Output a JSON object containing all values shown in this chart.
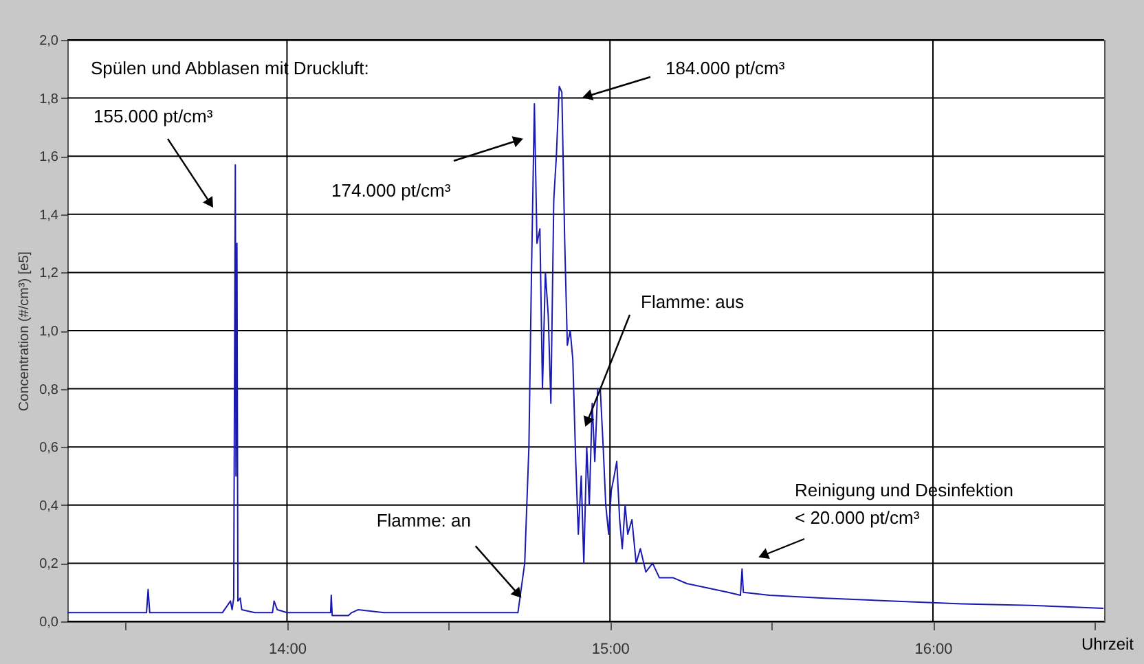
{
  "chart_data": {
    "type": "line",
    "ylabel": "Concentration (#/cm³) [e5]",
    "xlabel": "Uhrzeit",
    "xlim": [
      13.32,
      16.53
    ],
    "ylim": [
      0,
      2.0
    ],
    "xticks": [
      {
        "value": 13.5,
        "label": null
      },
      {
        "value": 14,
        "label": "14:00"
      },
      {
        "value": 14.5,
        "label": null
      },
      {
        "value": 15,
        "label": "15:00"
      },
      {
        "value": 15.5,
        "label": null
      },
      {
        "value": 16,
        "label": "16:00"
      },
      {
        "value": 16.5,
        "label": null
      }
    ],
    "yticks": [
      {
        "value": 0,
        "label": "0,0"
      },
      {
        "value": 0.2,
        "label": "0,2"
      },
      {
        "value": 0.4,
        "label": "0,4"
      },
      {
        "value": 0.6,
        "label": "0,6"
      },
      {
        "value": 0.8,
        "label": "0,8"
      },
      {
        "value": 1.0,
        "label": "1,0"
      },
      {
        "value": 1.2,
        "label": "1,2"
      },
      {
        "value": 1.4,
        "label": "1,4"
      },
      {
        "value": 1.6,
        "label": "1,6"
      },
      {
        "value": 1.8,
        "label": "1,8"
      },
      {
        "value": 2.0,
        "label": "2,0"
      }
    ],
    "grid": true,
    "marker": "none",
    "line_style": "solid",
    "series": [
      {
        "color": "#1a1ab0",
        "x": [
          13.32,
          13.5,
          13.565,
          13.57,
          13.575,
          13.8,
          13.825,
          13.83,
          13.835,
          13.84,
          13.842,
          13.845,
          13.848,
          13.855,
          13.86,
          13.9,
          13.955,
          13.96,
          13.97,
          14.0,
          14.135,
          14.137,
          14.14,
          14.19,
          14.2,
          14.22,
          14.3,
          14.5,
          14.715,
          14.736,
          14.749,
          14.757,
          14.766,
          14.774,
          14.783,
          14.791,
          14.8,
          14.809,
          14.817,
          14.826,
          14.834,
          14.843,
          14.851,
          14.86,
          14.868,
          14.877,
          14.885,
          14.894,
          14.902,
          14.911,
          14.919,
          14.928,
          14.936,
          14.945,
          14.953,
          14.962,
          14.97,
          14.979,
          14.987,
          14.996,
          15.004,
          15.013,
          15.021,
          15.03,
          15.038,
          15.047,
          15.055,
          15.068,
          15.081,
          15.094,
          15.111,
          15.132,
          15.153,
          15.196,
          15.238,
          15.281,
          15.366,
          15.404,
          15.409,
          15.413,
          15.494,
          15.664,
          15.877,
          16.089,
          16.302,
          16.528
        ],
        "values": [
          0.03,
          0.03,
          0.03,
          0.11,
          0.03,
          0.03,
          0.07,
          0.04,
          0.08,
          1.57,
          0.5,
          1.3,
          0.07,
          0.08,
          0.04,
          0.03,
          0.03,
          0.07,
          0.04,
          0.03,
          0.03,
          0.09,
          0.02,
          0.02,
          0.03,
          0.04,
          0.03,
          0.03,
          0.03,
          0.2,
          0.6,
          1.2,
          1.78,
          1.3,
          1.35,
          0.8,
          1.2,
          1.05,
          0.75,
          1.45,
          1.6,
          1.84,
          1.82,
          1.3,
          0.95,
          1.0,
          0.9,
          0.55,
          0.3,
          0.5,
          0.2,
          0.6,
          0.4,
          0.75,
          0.55,
          0.8,
          0.8,
          0.6,
          0.4,
          0.3,
          0.45,
          0.5,
          0.55,
          0.35,
          0.25,
          0.4,
          0.3,
          0.35,
          0.2,
          0.25,
          0.17,
          0.2,
          0.15,
          0.15,
          0.13,
          0.12,
          0.1,
          0.09,
          0.18,
          0.1,
          0.09,
          0.08,
          0.07,
          0.06,
          0.055,
          0.045
        ]
      }
    ],
    "annotations": [
      "Spülen und Abblasen mit Druckluft:",
      "155.000 pt/cm³",
      "174.000 pt/cm³",
      "184.000 pt/cm³",
      {
        "text": "Flamme: an",
        "x": 14.72,
        "y": 0.07
      },
      "Flamme: aus",
      "Reinigung und Desinfektion\n< 20.000 pt/cm³"
    ]
  }
}
